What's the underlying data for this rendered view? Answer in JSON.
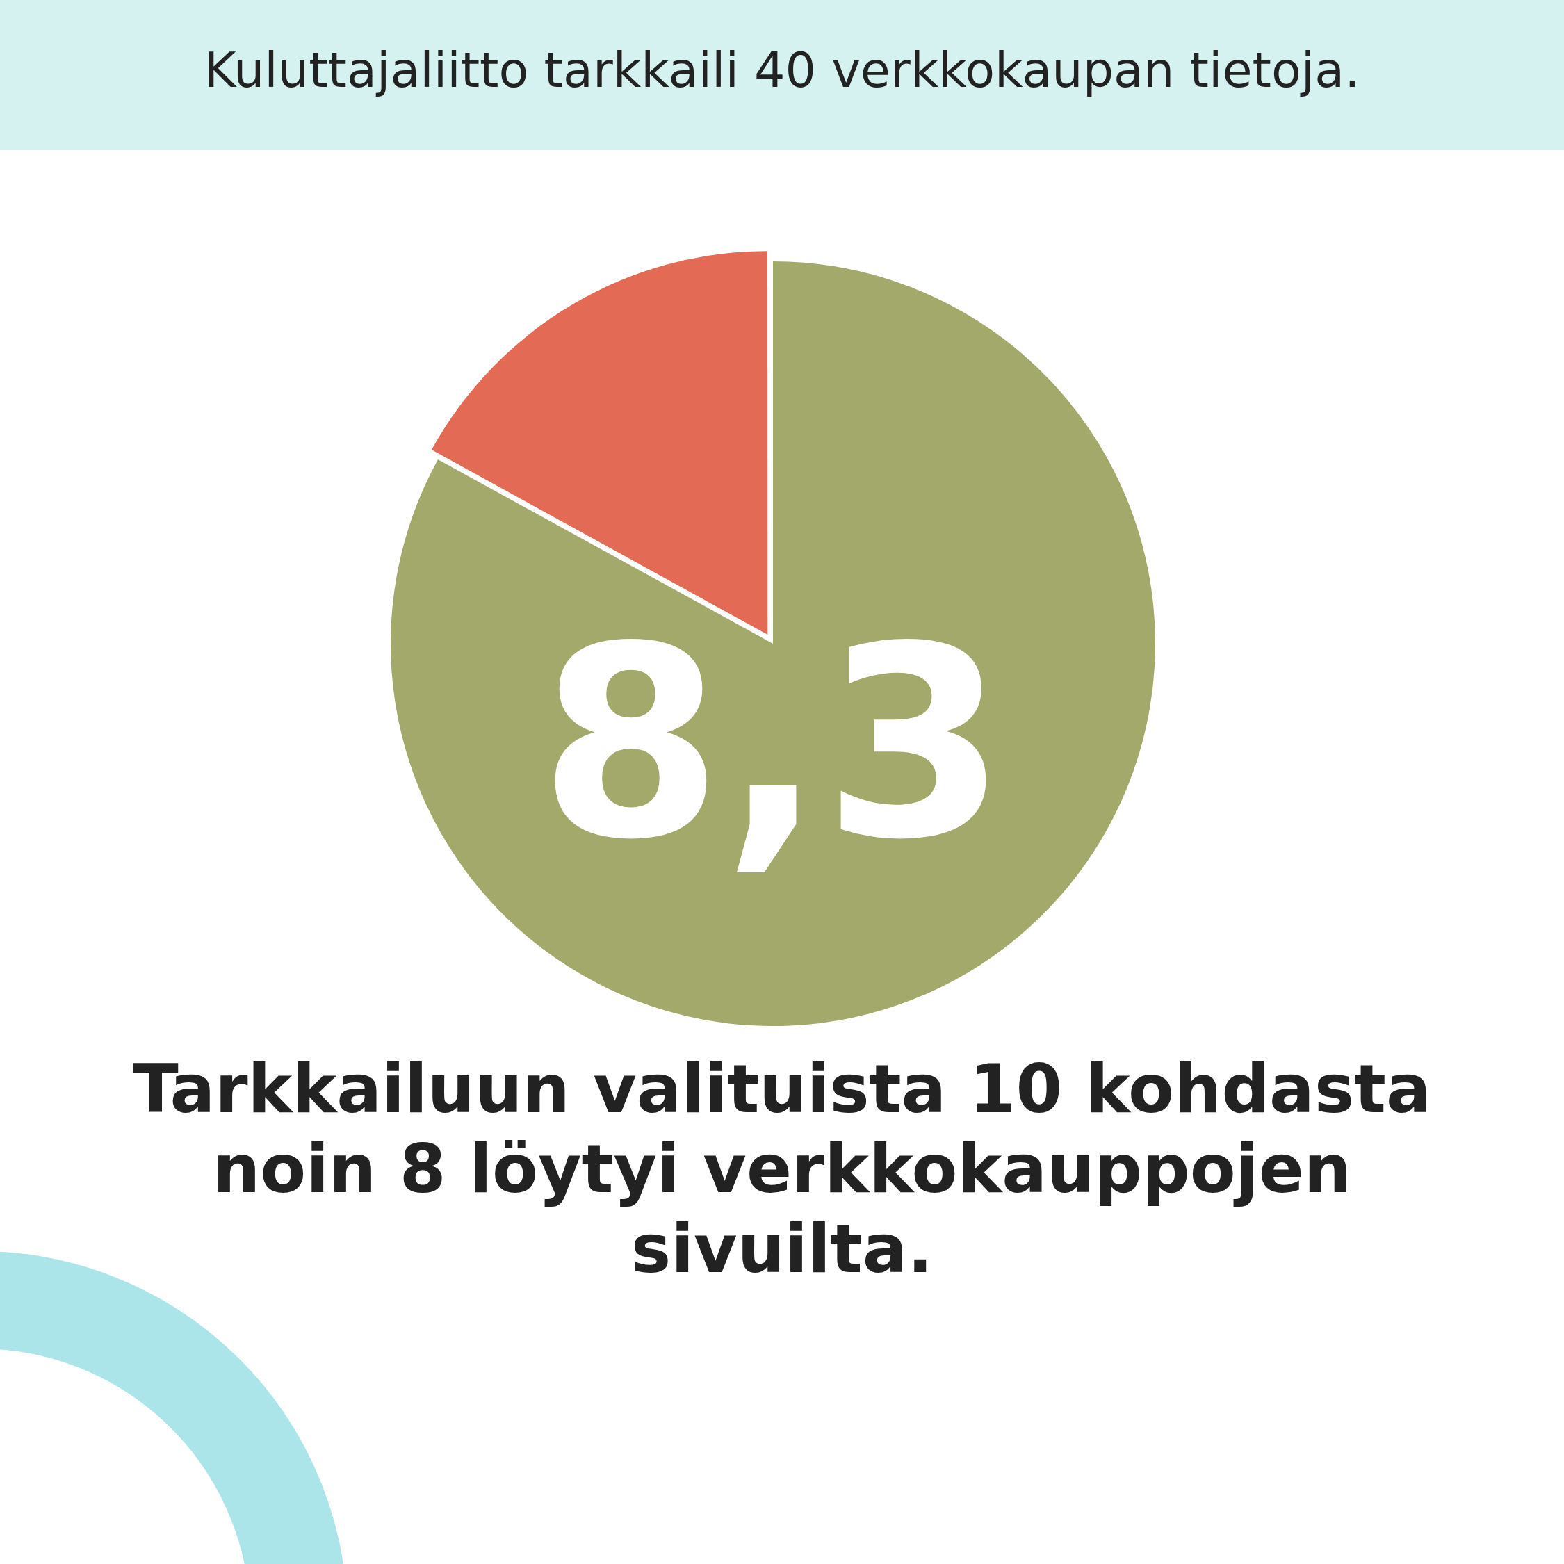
{
  "chart_data": {
    "type": "pie",
    "title": "Kuluttajaliitto tarkkaili 40 verkkokaupan tietoja.",
    "categories": [
      null,
      null
    ],
    "values": [
      83,
      17
    ],
    "colors": [
      "#a3a86b",
      "#e36a55"
    ],
    "annotations": [
      "8,3",
      "Tarkkailuun valituista 10 kohdasta noin 8 löytyi verkkokauppojen sivuilta."
    ],
    "legend": false
  }
}
